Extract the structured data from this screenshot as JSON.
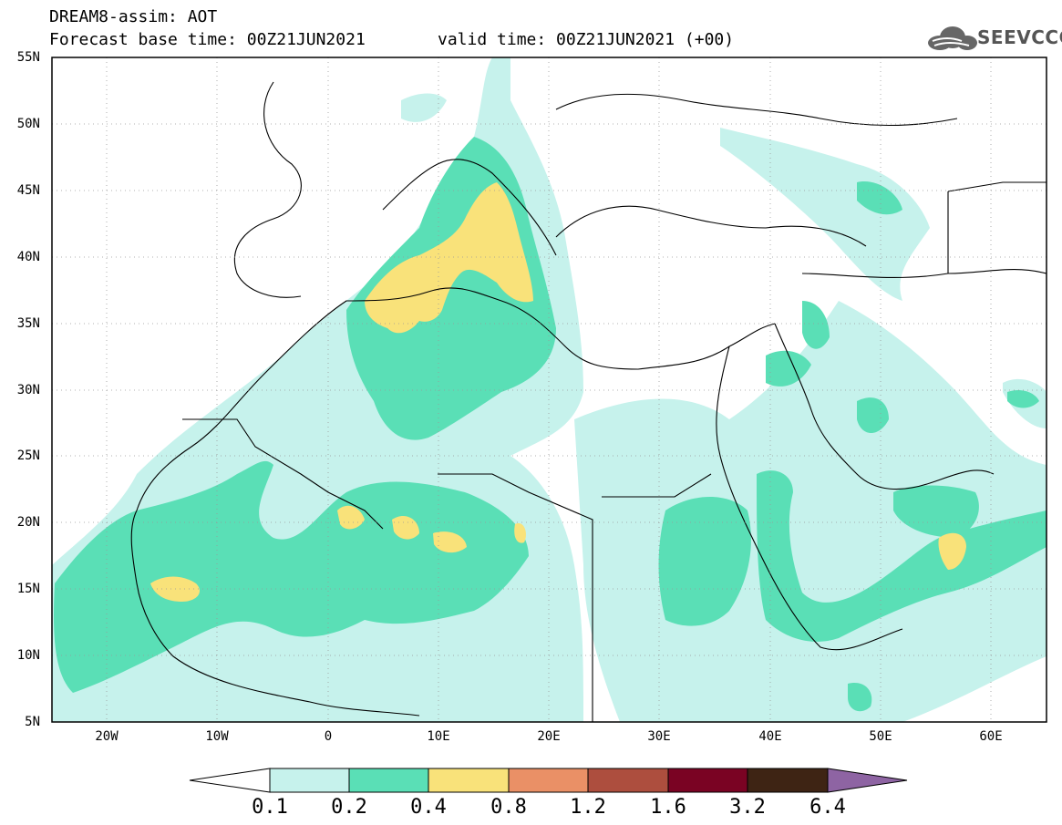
{
  "header": {
    "title_line1": "DREAM8-assim: AOT",
    "title_line2_left": "Forecast base time: 00Z21JUN2021",
    "title_line2_right": "valid time: 00Z21JUN2021 (+00)",
    "logo_text": "SEEVCCC",
    "logo_icon": "cloud-logo-icon"
  },
  "map": {
    "lat_labels": [
      "55N",
      "50N",
      "45N",
      "40N",
      "35N",
      "30N",
      "25N",
      "20N",
      "15N",
      "10N",
      "5N"
    ],
    "lon_labels": [
      "20W",
      "10W",
      "0",
      "10E",
      "20E",
      "30E",
      "40E",
      "50E",
      "60E"
    ],
    "lat_range": [
      5,
      55
    ],
    "lon_range": [
      -25,
      65
    ],
    "grid": true
  },
  "colorbar": {
    "labels": [
      "0.1",
      "0.2",
      "0.4",
      "0.8",
      "1.2",
      "1.6",
      "3.2",
      "6.4"
    ],
    "colors": [
      "#c6f2ec",
      "#5adfb6",
      "#f9e27a",
      "#ea9066",
      "#ad4e3e",
      "#7a0323",
      "#3e2414",
      "#8e64a3"
    ],
    "extend": "both"
  }
}
